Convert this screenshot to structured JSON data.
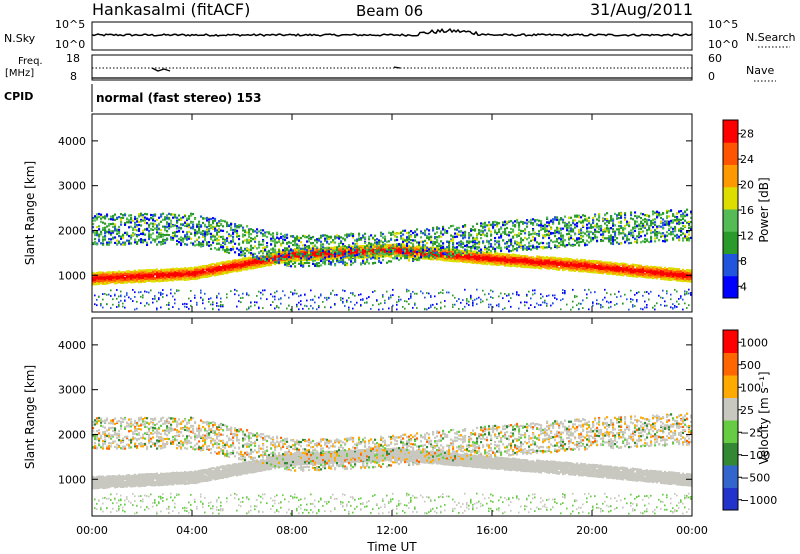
{
  "header": {
    "station": "Hankasalmi (fitACF)",
    "beam": "Beam 06",
    "date": "31/Aug/2011"
  },
  "sky_panel": {
    "left_label": "N.Sky",
    "left_ticks": [
      "10^5",
      "10^0"
    ],
    "right_label": "N.Search",
    "right_ticks": [
      "10^5",
      "10^0"
    ]
  },
  "freq_panel": {
    "left_label_1": "Freq.",
    "left_label_2": "[MHz]",
    "left_ticks": [
      "18",
      "8"
    ],
    "right_label": "Nave",
    "right_ticks": [
      "60",
      "0"
    ]
  },
  "cpid_panel": {
    "label": "CPID",
    "text": "normal (fast stereo) 153"
  },
  "x_axis": {
    "ticks": [
      "00:00",
      "04:00",
      "08:00",
      "12:00",
      "16:00",
      "20:00",
      "00:00"
    ],
    "label": "Time UT"
  },
  "chart_data": [
    {
      "type": "heatmap",
      "name": "power-panel",
      "ylabel": "Slant Range [km]",
      "ylim": [
        180,
        4600
      ],
      "yticks": [
        "4000",
        "3000",
        "2000",
        "1000"
      ],
      "xlim_hours": [
        0,
        24
      ],
      "colorbar": {
        "label": "Power [dB]",
        "ticks": [
          "28",
          "24",
          "20",
          "16",
          "12",
          "8",
          "4"
        ],
        "range": [
          0,
          30
        ],
        "colors": [
          "#0000ff",
          "#2255dd",
          "#2a9a2a",
          "#55bb55",
          "#dddd00",
          "#ff9900",
          "#ff5500",
          "#ff0000"
        ]
      },
      "bands": [
        {
          "hours": [
            0,
            24
          ],
          "ranges_km": [
            [
              900,
              1000
            ],
            [
              1120,
              1000
            ],
            [
              1250,
              1700
            ],
            [
              1520,
              1650
            ],
            [
              1380,
              1400
            ],
            [
              1320,
              1120
            ],
            [
              1000,
              1000
            ]
          ],
          "power_db": 28
        },
        {
          "hours": [
            0,
            24
          ],
          "ranges_km": [
            [
              1800,
              2300
            ],
            [
              1900,
              2200
            ],
            [
              1600,
              1500
            ],
            [
              1600,
              1700
            ],
            [
              1900,
              1850
            ],
            [
              2000,
              2100
            ],
            [
              2100,
              2200
            ]
          ],
          "power_db": 14
        }
      ]
    },
    {
      "type": "heatmap",
      "name": "velocity-panel",
      "ylabel": "Slant Range [km]",
      "ylim": [
        180,
        4600
      ],
      "yticks": [
        "4000",
        "3000",
        "2000",
        "1000"
      ],
      "xlim_hours": [
        0,
        24
      ],
      "colorbar": {
        "label": "Velocity [m s⁻¹]",
        "ticks": [
          "1000",
          "500",
          "100",
          "25",
          "−25",
          "−100",
          "−500",
          "−1000"
        ],
        "colors": [
          "#2233cc",
          "#3366cc",
          "#338833",
          "#66cc44",
          "#c8c8c0",
          "#ffaa00",
          "#ff6600",
          "#ff0000"
        ]
      },
      "dominant_value": "ground scatter (gray)"
    }
  ]
}
